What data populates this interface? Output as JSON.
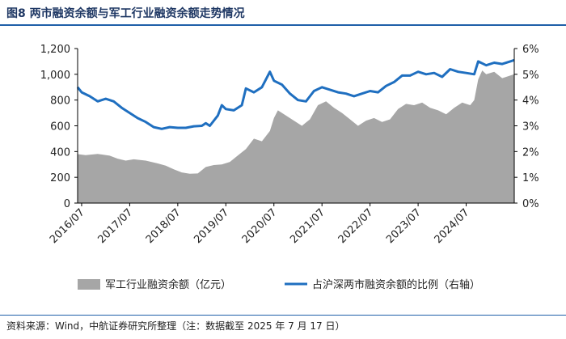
{
  "header": {
    "title": "图8  两市融资余额与军工行业融资余额走势情况"
  },
  "footer": {
    "source": "资料来源：Wind，中航证券研究所整理（注：数据截至 2025 年 7 月 17 日）"
  },
  "colors": {
    "area": "#a6a6a6",
    "line": "#1f6fc0",
    "rule": "#1f5fa8"
  },
  "chart_data": {
    "type": "area+line",
    "title": "图8  两市融资余额与军工行业融资余额走势情况",
    "legend_position": "bottom",
    "grid": false,
    "x_range": [
      "2016-06",
      "2025-07"
    ],
    "x_ticks": [
      "2016/07",
      "2017/07",
      "2018/07",
      "2019/07",
      "2020/07",
      "2021/07",
      "2022/07",
      "2023/07",
      "2024/07"
    ],
    "y_left": {
      "range": [
        0,
        1200
      ],
      "ticks": [
        "0",
        "200",
        "400",
        "600",
        "800",
        "1,000",
        "1,200"
      ]
    },
    "y_right": {
      "range": [
        0,
        6
      ],
      "ticks": [
        "0%",
        "1%",
        "2%",
        "3%",
        "4%",
        "5%",
        "6%"
      ]
    },
    "series": [
      {
        "name": "军工行业融资余额（亿元）",
        "type": "area",
        "axis": "left",
        "points": [
          [
            "2016-06",
            380
          ],
          [
            "2016-08",
            372
          ],
          [
            "2016-11",
            382
          ],
          [
            "2017-02",
            368
          ],
          [
            "2017-04",
            345
          ],
          [
            "2017-06",
            330
          ],
          [
            "2017-08",
            340
          ],
          [
            "2017-11",
            330
          ],
          [
            "2018-02",
            308
          ],
          [
            "2018-04",
            290
          ],
          [
            "2018-06",
            262
          ],
          [
            "2018-08",
            238
          ],
          [
            "2018-10",
            228
          ],
          [
            "2018-12",
            230
          ],
          [
            "2019-02",
            280
          ],
          [
            "2019-04",
            295
          ],
          [
            "2019-06",
            300
          ],
          [
            "2019-08",
            320
          ],
          [
            "2019-10",
            370
          ],
          [
            "2019-12",
            420
          ],
          [
            "2020-02",
            500
          ],
          [
            "2020-04",
            480
          ],
          [
            "2020-06",
            560
          ],
          [
            "2020-07",
            660
          ],
          [
            "2020-08",
            720
          ],
          [
            "2020-10",
            680
          ],
          [
            "2020-12",
            640
          ],
          [
            "2021-02",
            600
          ],
          [
            "2021-04",
            650
          ],
          [
            "2021-06",
            760
          ],
          [
            "2021-08",
            790
          ],
          [
            "2021-10",
            740
          ],
          [
            "2021-12",
            700
          ],
          [
            "2022-02",
            650
          ],
          [
            "2022-04",
            600
          ],
          [
            "2022-06",
            640
          ],
          [
            "2022-08",
            660
          ],
          [
            "2022-10",
            630
          ],
          [
            "2022-12",
            650
          ],
          [
            "2023-02",
            730
          ],
          [
            "2023-04",
            770
          ],
          [
            "2023-06",
            760
          ],
          [
            "2023-08",
            780
          ],
          [
            "2023-10",
            740
          ],
          [
            "2023-12",
            720
          ],
          [
            "2024-02",
            690
          ],
          [
            "2024-04",
            740
          ],
          [
            "2024-06",
            780
          ],
          [
            "2024-08",
            760
          ],
          [
            "2024-09",
            800
          ],
          [
            "2024-10",
            960
          ],
          [
            "2024-11",
            1030
          ],
          [
            "2024-12",
            1000
          ],
          [
            "2025-02",
            1020
          ],
          [
            "2025-04",
            970
          ],
          [
            "2025-06",
            990
          ],
          [
            "2025-07",
            1000
          ]
        ]
      },
      {
        "name": "占沪深两市融资余额的比例（右轴）",
        "type": "line",
        "axis": "right",
        "points": [
          [
            "2016-06",
            4.5
          ],
          [
            "2016-07",
            4.3
          ],
          [
            "2016-09",
            4.15
          ],
          [
            "2016-11",
            3.95
          ],
          [
            "2017-01",
            4.05
          ],
          [
            "2017-03",
            3.95
          ],
          [
            "2017-05",
            3.7
          ],
          [
            "2017-07",
            3.5
          ],
          [
            "2017-09",
            3.3
          ],
          [
            "2017-11",
            3.15
          ],
          [
            "2018-01",
            2.95
          ],
          [
            "2018-03",
            2.88
          ],
          [
            "2018-05",
            2.95
          ],
          [
            "2018-07",
            2.92
          ],
          [
            "2018-09",
            2.92
          ],
          [
            "2018-11",
            2.98
          ],
          [
            "2019-01",
            3.0
          ],
          [
            "2019-02",
            3.1
          ],
          [
            "2019-03",
            3.0
          ],
          [
            "2019-05",
            3.4
          ],
          [
            "2019-06",
            3.8
          ],
          [
            "2019-07",
            3.65
          ],
          [
            "2019-09",
            3.6
          ],
          [
            "2019-11",
            3.8
          ],
          [
            "2019-12",
            4.45
          ],
          [
            "2020-02",
            4.3
          ],
          [
            "2020-04",
            4.5
          ],
          [
            "2020-06",
            5.1
          ],
          [
            "2020-07",
            4.75
          ],
          [
            "2020-09",
            4.6
          ],
          [
            "2020-11",
            4.25
          ],
          [
            "2021-01",
            4.0
          ],
          [
            "2021-03",
            3.95
          ],
          [
            "2021-05",
            4.35
          ],
          [
            "2021-07",
            4.5
          ],
          [
            "2021-09",
            4.4
          ],
          [
            "2021-11",
            4.3
          ],
          [
            "2022-01",
            4.25
          ],
          [
            "2022-03",
            4.15
          ],
          [
            "2022-05",
            4.25
          ],
          [
            "2022-07",
            4.35
          ],
          [
            "2022-09",
            4.3
          ],
          [
            "2022-11",
            4.55
          ],
          [
            "2023-01",
            4.7
          ],
          [
            "2023-03",
            4.95
          ],
          [
            "2023-05",
            4.95
          ],
          [
            "2023-07",
            5.1
          ],
          [
            "2023-09",
            5.0
          ],
          [
            "2023-11",
            5.05
          ],
          [
            "2024-01",
            4.9
          ],
          [
            "2024-03",
            5.2
          ],
          [
            "2024-05",
            5.1
          ],
          [
            "2024-07",
            5.05
          ],
          [
            "2024-09",
            5.0
          ],
          [
            "2024-10",
            5.5
          ],
          [
            "2024-12",
            5.35
          ],
          [
            "2025-02",
            5.45
          ],
          [
            "2025-04",
            5.4
          ],
          [
            "2025-06",
            5.5
          ],
          [
            "2025-07",
            5.55
          ]
        ]
      }
    ]
  }
}
